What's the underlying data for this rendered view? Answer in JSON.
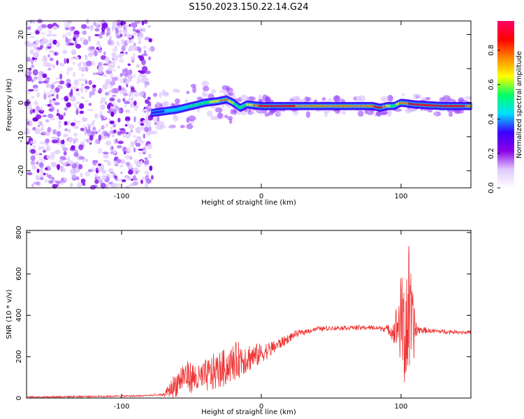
{
  "page": {
    "title": "S150.2023.150.22.14.G24"
  },
  "chart_data": [
    {
      "type": "heatmap",
      "xlabel": "Height of straight line (km)",
      "ylabel": "Frequency (Hz)",
      "xlim": [
        -168,
        150
      ],
      "ylim": [
        -25,
        24
      ],
      "x_ticks": [
        -100,
        0,
        100
      ],
      "y_ticks": [
        -20,
        -10,
        0,
        10,
        20
      ],
      "colorbar": {
        "label": "Normalized spectral amplitude",
        "range": [
          0,
          0.97
        ],
        "ticks": [
          0.0,
          0.2,
          0.4,
          0.6,
          0.8
        ],
        "colors": [
          "#ffffff",
          "#e0c8ff",
          "#8a00e6",
          "#3a00ff",
          "#00e0ff",
          "#00ff66",
          "#ffff00",
          "#ff8800",
          "#ff0000",
          "#ff0066"
        ]
      },
      "ridge": {
        "description_free": true,
        "x": [
          -78,
          -60,
          -40,
          -30,
          -25,
          -20,
          -15,
          -10,
          0,
          30,
          60,
          80,
          85,
          90,
          95,
          100,
          110,
          130,
          150
        ],
        "y": [
          -3,
          -2,
          0,
          0.5,
          1,
          0,
          -1.5,
          -0.5,
          -1,
          -1,
          -1,
          -1,
          -1.5,
          -1,
          -1,
          0,
          -0.5,
          -1,
          -1
        ],
        "value": [
          0.3,
          0.45,
          0.55,
          0.7,
          0.75,
          0.6,
          0.55,
          0.6,
          0.85,
          0.8,
          0.8,
          0.8,
          0.9,
          0.7,
          0.5,
          0.75,
          0.85,
          0.85,
          0.8
        ]
      },
      "noise_region_x": [
        -168,
        -78
      ]
    },
    {
      "type": "line",
      "xlabel": "Height of straight line (km)",
      "ylabel": "SNR (10 * v/v)",
      "xlim": [
        -168,
        150
      ],
      "ylim": [
        0,
        810
      ],
      "x_ticks": [
        -100,
        0,
        100
      ],
      "y_ticks": [
        0,
        200,
        400,
        600,
        800
      ],
      "line_color": "#ee3333",
      "x": [
        -168,
        -120,
        -90,
        -70,
        -62,
        -55,
        -45,
        -35,
        -25,
        -15,
        -5,
        5,
        15,
        25,
        40,
        60,
        80,
        90,
        95,
        100,
        103,
        105,
        108,
        112,
        120,
        135,
        150
      ],
      "y": [
        5,
        8,
        10,
        15,
        60,
        110,
        90,
        120,
        150,
        190,
        200,
        230,
        270,
        310,
        335,
        340,
        340,
        335,
        320,
        380,
        300,
        420,
        330,
        330,
        325,
        320,
        318
      ],
      "spike_amplitude": [
        0,
        0,
        0,
        5,
        60,
        80,
        70,
        90,
        90,
        90,
        60,
        40,
        25,
        15,
        10,
        10,
        10,
        15,
        60,
        220,
        300,
        380,
        200,
        20,
        10,
        8,
        8
      ]
    }
  ]
}
